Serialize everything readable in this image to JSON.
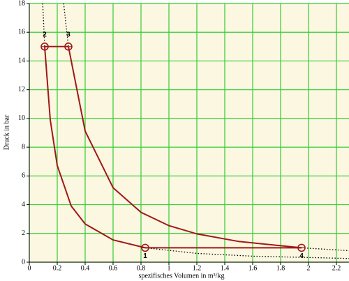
{
  "chart_data": {
    "type": "line",
    "x_label": "spezifisches Volumen in m³/kg",
    "y_label": "Druck in bar",
    "xlim": [
      0,
      2.29
    ],
    "ylim": [
      0,
      18
    ],
    "xticks": [
      0,
      0.2,
      0.4,
      0.6,
      0.8,
      1,
      1.2,
      1.4,
      1.6,
      1.8,
      2,
      2.2
    ],
    "yticks": [
      0,
      2,
      4,
      6,
      8,
      10,
      12,
      14,
      16,
      18
    ],
    "grid": true,
    "grid_color": "#33cc33",
    "background": "#fbf7e1",
    "series": [
      {
        "color": "#a01818",
        "dashed": false,
        "x": [
          0.83,
          0.6,
          0.4,
          0.3,
          0.2,
          0.15,
          0.11
        ],
        "values": [
          1,
          1.55,
          2.66,
          3.91,
          6.73,
          9.9,
          15
        ]
      },
      {
        "color": "#a01818",
        "dashed": false,
        "x": [
          0.11,
          0.28
        ],
        "values": [
          15,
          15
        ]
      },
      {
        "color": "#a01818",
        "dashed": false,
        "x": [
          0.28,
          0.4,
          0.6,
          0.8,
          1,
          1.2,
          1.5,
          1.95
        ],
        "values": [
          15,
          9.12,
          5.18,
          3.47,
          2.54,
          1.97,
          1.44,
          1
        ]
      },
      {
        "color": "#a01818",
        "dashed": false,
        "x": [
          1.95,
          0.83
        ],
        "values": [
          1,
          1
        ]
      },
      {
        "color": "#000000",
        "dashed": true,
        "x": [
          0.096,
          0.11
        ],
        "values": [
          18,
          15
        ]
      },
      {
        "color": "#000000",
        "dashed": true,
        "x": [
          0.246,
          0.28
        ],
        "values": [
          18,
          15
        ]
      },
      {
        "color": "#000000",
        "dashed": true,
        "x": [
          0.83,
          1.2,
          1.6,
          2.29
        ],
        "values": [
          1,
          0.61,
          0.415,
          0.257
        ]
      },
      {
        "color": "#000000",
        "dashed": true,
        "x": [
          1.95,
          2.29
        ],
        "values": [
          1,
          0.8
        ]
      }
    ],
    "points": [
      {
        "label": "1",
        "x": 0.83,
        "y": 1
      },
      {
        "label": "2",
        "x": 0.11,
        "y": 15
      },
      {
        "label": "3",
        "x": 0.28,
        "y": 15
      },
      {
        "label": "4",
        "x": 1.95,
        "y": 1
      }
    ]
  }
}
